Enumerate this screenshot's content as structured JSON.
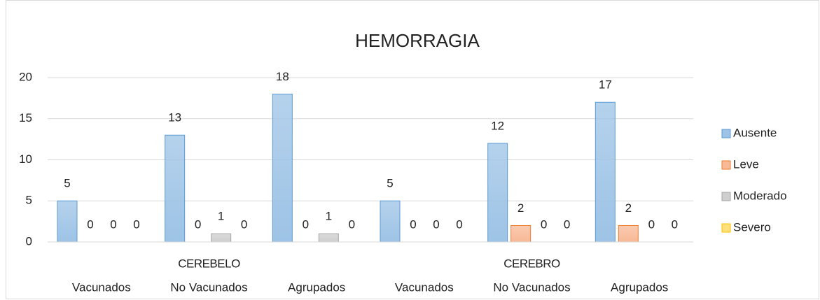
{
  "chart_data": {
    "type": "bar",
    "title": "HEMORRAGIA",
    "categories": [
      "Vacunados",
      "No Vacunados",
      "Agrupados",
      "Vacunados",
      "No Vacunados",
      "Agrupados"
    ],
    "category_groups": [
      "CEREBELO",
      "CEREBRO"
    ],
    "series": [
      {
        "name": "Ausente",
        "color": "#9dc3e6",
        "edge": "#5b9bd5",
        "values": [
          5,
          13,
          18,
          5,
          12,
          17
        ]
      },
      {
        "name": "Leve",
        "color": "#f8b996",
        "edge": "#ed7d31",
        "values": [
          0,
          0,
          0,
          0,
          2,
          2
        ]
      },
      {
        "name": "Moderado",
        "color": "#cfcfcf",
        "edge": "#a5a5a5",
        "values": [
          0,
          1,
          1,
          0,
          0,
          0
        ]
      },
      {
        "name": "Severo",
        "color": "#ffe07a",
        "edge": "#ffc000",
        "values": [
          0,
          0,
          0,
          0,
          0,
          0
        ]
      }
    ],
    "ylim": [
      0,
      20
    ],
    "yticks": [
      0,
      5,
      10,
      15,
      20
    ],
    "grid": true,
    "legend": "right",
    "data_labels": true
  }
}
